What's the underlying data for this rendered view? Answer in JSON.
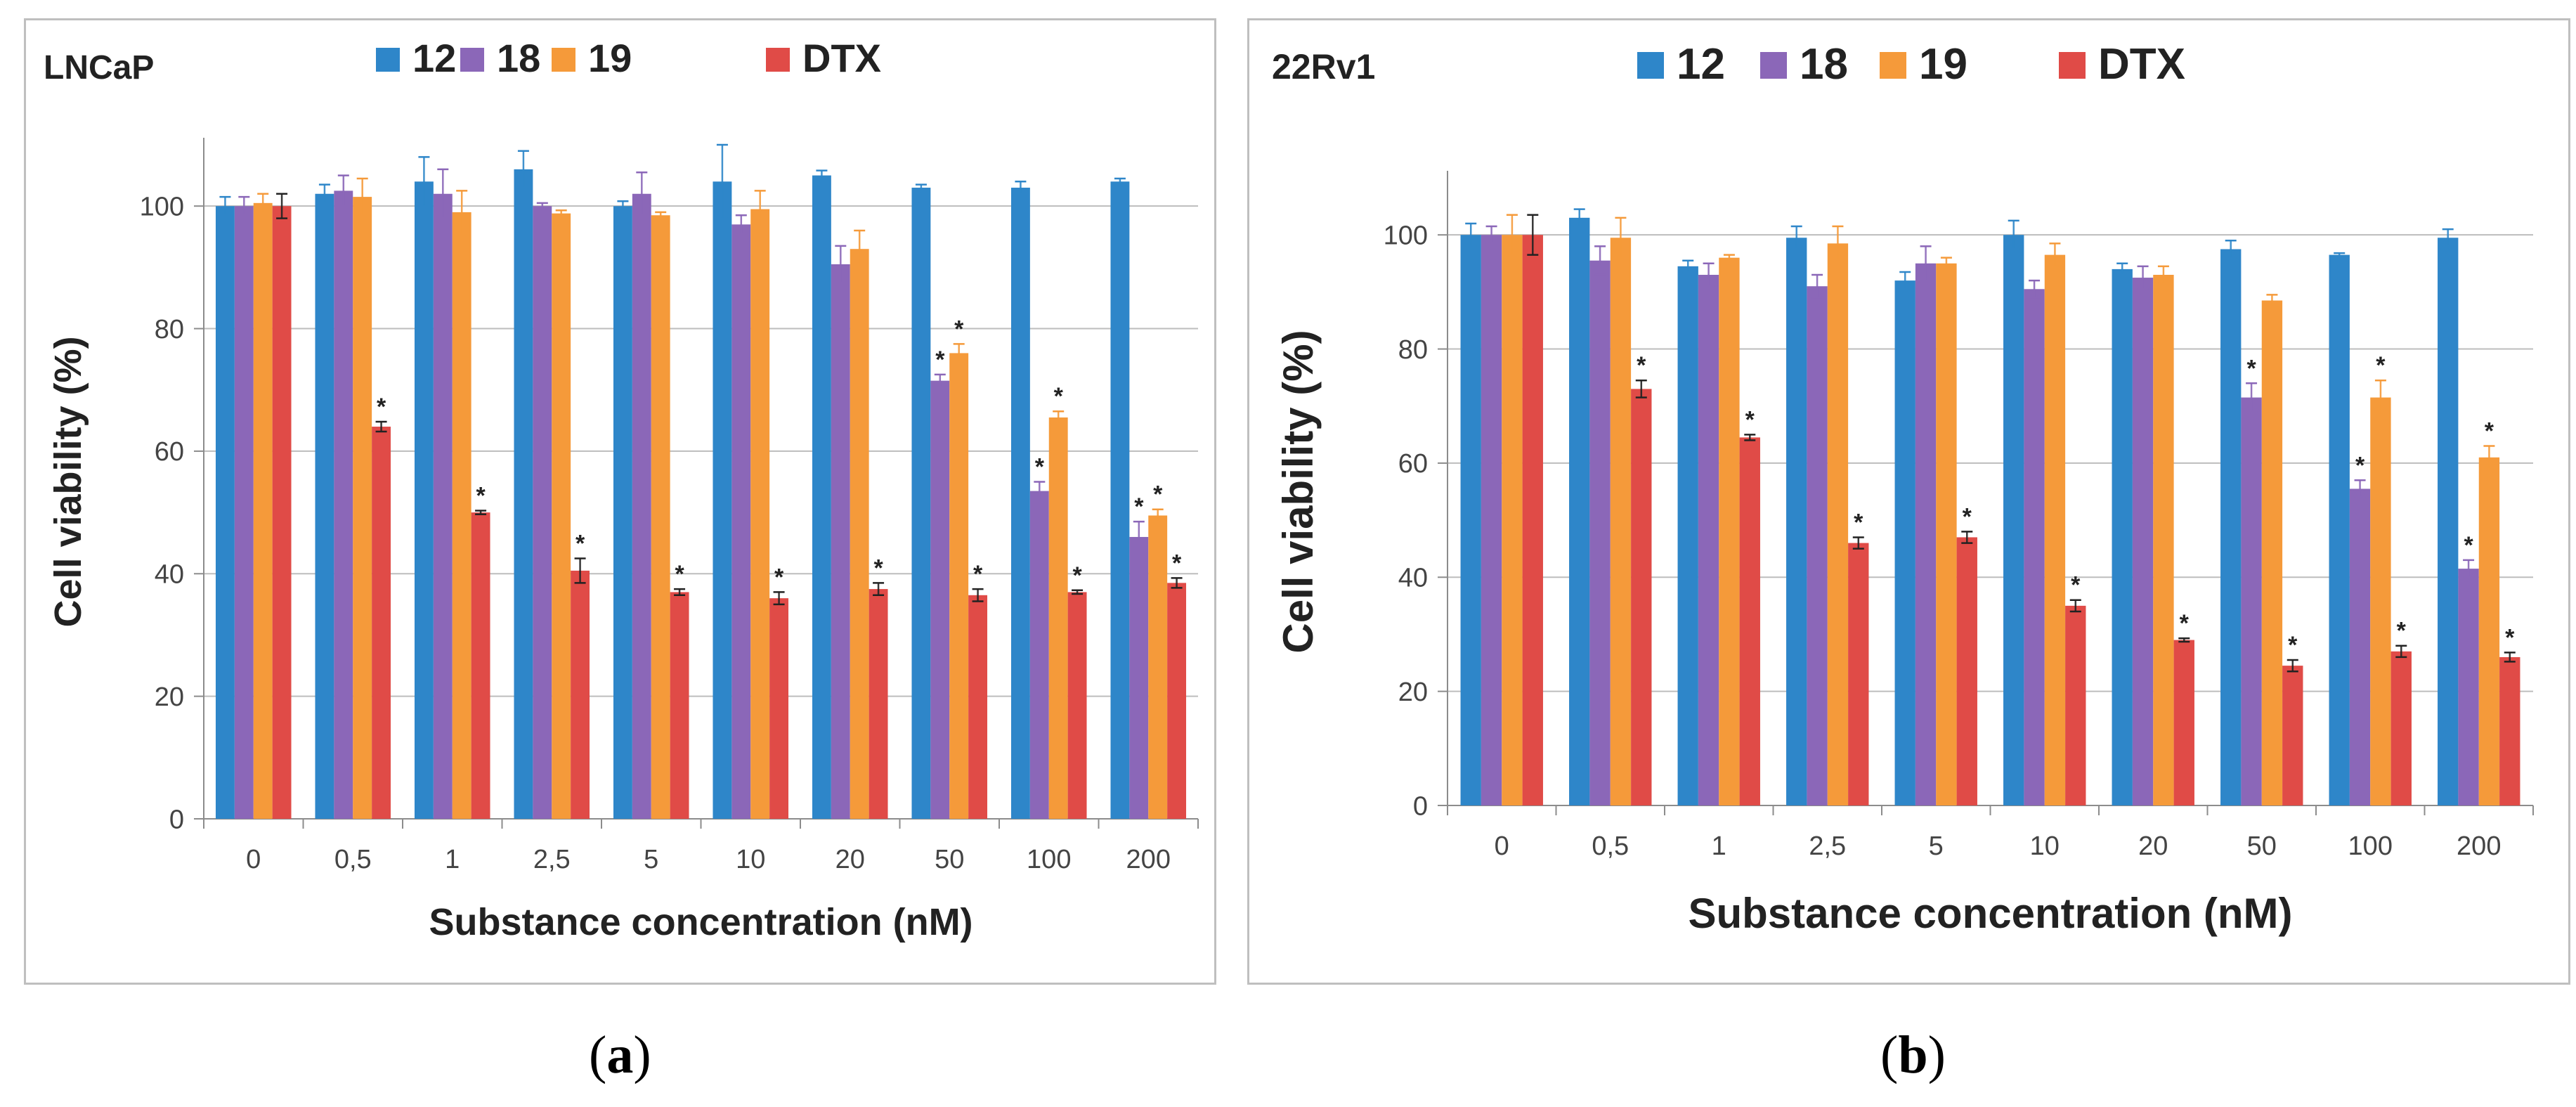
{
  "panels": [
    {
      "caption_open": "(",
      "caption_letter": "a",
      "caption_close": ")",
      "chart_data": {
        "type": "bar",
        "title": "LNCaP",
        "xlabel": "Substance concentration (nM)",
        "ylabel": "Cell viability (%)",
        "ylim": [
          0,
          110
        ],
        "yticks": [
          "0",
          "20",
          "40",
          "60",
          "80",
          "100"
        ],
        "grid": true,
        "legend_position": "top",
        "categories": [
          "0",
          "0,5",
          "1",
          "2,5",
          "5",
          "10",
          "20",
          "50",
          "100",
          "200"
        ],
        "series": [
          {
            "name": "12",
            "color": "#2e86c9",
            "values": [
              100,
              102,
              104,
              106,
              100,
              104,
              105,
              103,
              103,
              104
            ],
            "errors": [
              1.5,
              1.5,
              4,
              3,
              0.8,
              6,
              0.8,
              0.5,
              1,
              0.5
            ],
            "sig": [
              false,
              false,
              false,
              false,
              false,
              false,
              false,
              false,
              false,
              false
            ]
          },
          {
            "name": "18",
            "color": "#8b67b8",
            "values": [
              100,
              102.5,
              102,
              100,
              102,
              97,
              90.5,
              71.5,
              53.5,
              46
            ],
            "errors": [
              1.5,
              2.5,
              4,
              0.5,
              3.5,
              1.5,
              3,
              1,
              1.5,
              2.5
            ],
            "sig": [
              false,
              false,
              false,
              false,
              false,
              false,
              false,
              true,
              true,
              true
            ]
          },
          {
            "name": "19",
            "color": "#f59a3a",
            "values": [
              100.5,
              101.5,
              99,
              98.8,
              98.5,
              99.5,
              93,
              76,
              65.5,
              49.5
            ],
            "errors": [
              1.5,
              3,
              3.5,
              0.5,
              0.5,
              3,
              3,
              1.5,
              1,
              1
            ],
            "sig": [
              false,
              false,
              false,
              false,
              false,
              false,
              false,
              true,
              true,
              true
            ]
          },
          {
            "name": "DTX",
            "color": "#e04b47",
            "values": [
              100,
              64,
              50,
              40.5,
              37,
              36,
              37.5,
              36.5,
              37,
              38.5
            ],
            "errors": [
              2,
              0.8,
              0.3,
              2,
              0.5,
              1,
              1,
              1,
              0.3,
              0.8
            ],
            "sig": [
              false,
              true,
              true,
              true,
              true,
              true,
              true,
              true,
              true,
              true
            ]
          }
        ]
      }
    },
    {
      "caption_open": "(",
      "caption_letter": "b",
      "caption_close": ")",
      "chart_data": {
        "type": "bar",
        "title": "22Rv1",
        "xlabel": "Substance concentration (nM)",
        "ylabel": "Cell viability (%)",
        "ylim": [
          0,
          110
        ],
        "yticks": [
          "0",
          "20",
          "40",
          "60",
          "80",
          "100"
        ],
        "grid": true,
        "legend_position": "top",
        "categories": [
          "0",
          "0,5",
          "1",
          "2,5",
          "5",
          "10",
          "20",
          "50",
          "100",
          "200"
        ],
        "series": [
          {
            "name": "12",
            "color": "#2e86c9",
            "values": [
              100,
              103,
              94.5,
              99.5,
              92,
              100,
              94,
              97.5,
              96.5,
              99.5
            ],
            "errors": [
              2,
              1.5,
              1,
              2,
              1.5,
              2.5,
              1,
              1.5,
              0.3,
              1.5
            ],
            "sig": [
              false,
              false,
              false,
              false,
              false,
              false,
              false,
              false,
              false,
              false
            ]
          },
          {
            "name": "18",
            "color": "#8b67b8",
            "values": [
              100,
              95.5,
              93,
              91,
              95,
              90.5,
              92.5,
              71.5,
              55.5,
              41.5
            ],
            "errors": [
              1.5,
              2.5,
              2,
              2,
              3,
              1.5,
              2,
              2.5,
              1.5,
              1.5
            ],
            "sig": [
              false,
              false,
              false,
              false,
              false,
              false,
              false,
              true,
              true,
              true
            ]
          },
          {
            "name": "19",
            "color": "#f59a3a",
            "values": [
              100,
              99.5,
              96,
              98.5,
              95,
              96.5,
              93,
              88.5,
              71.5,
              61
            ],
            "errors": [
              3.5,
              3.5,
              0.5,
              3,
              1,
              2,
              1.5,
              1,
              3,
              2
            ],
            "sig": [
              false,
              false,
              false,
              false,
              false,
              false,
              false,
              false,
              true,
              true
            ]
          },
          {
            "name": "DTX",
            "color": "#e04b47",
            "values": [
              100,
              73,
              64.5,
              46,
              47,
              35,
              29,
              24.5,
              27,
              26
            ],
            "errors": [
              3.5,
              1.5,
              0.5,
              1,
              1,
              1,
              0.3,
              1,
              1,
              0.8
            ],
            "sig": [
              false,
              true,
              true,
              true,
              true,
              true,
              true,
              true,
              true,
              true
            ]
          }
        ]
      }
    }
  ]
}
